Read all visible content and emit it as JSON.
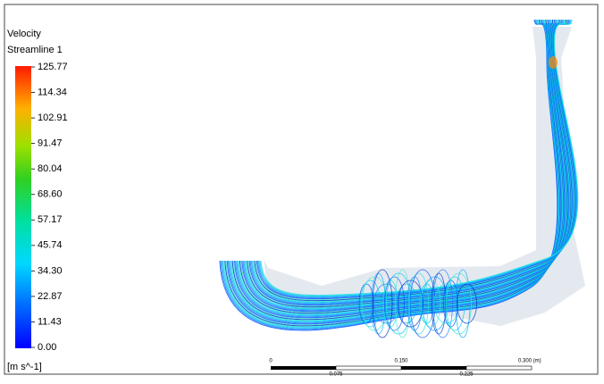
{
  "legend": {
    "title": "Velocity",
    "subtitle": "Streamline 1",
    "ticks": [
      "125.77",
      "114.34",
      "102.91",
      "91.47",
      "80.04",
      "68.60",
      "57.17",
      "45.74",
      "34.30",
      "22.87",
      "11.43",
      "0.00"
    ],
    "unit": "[m s^-1]"
  },
  "scale_bar": {
    "upper_labels": [
      "0",
      "0.150",
      "0.300 (m)"
    ],
    "lower_labels": [
      "0.075",
      "0.225"
    ]
  }
}
